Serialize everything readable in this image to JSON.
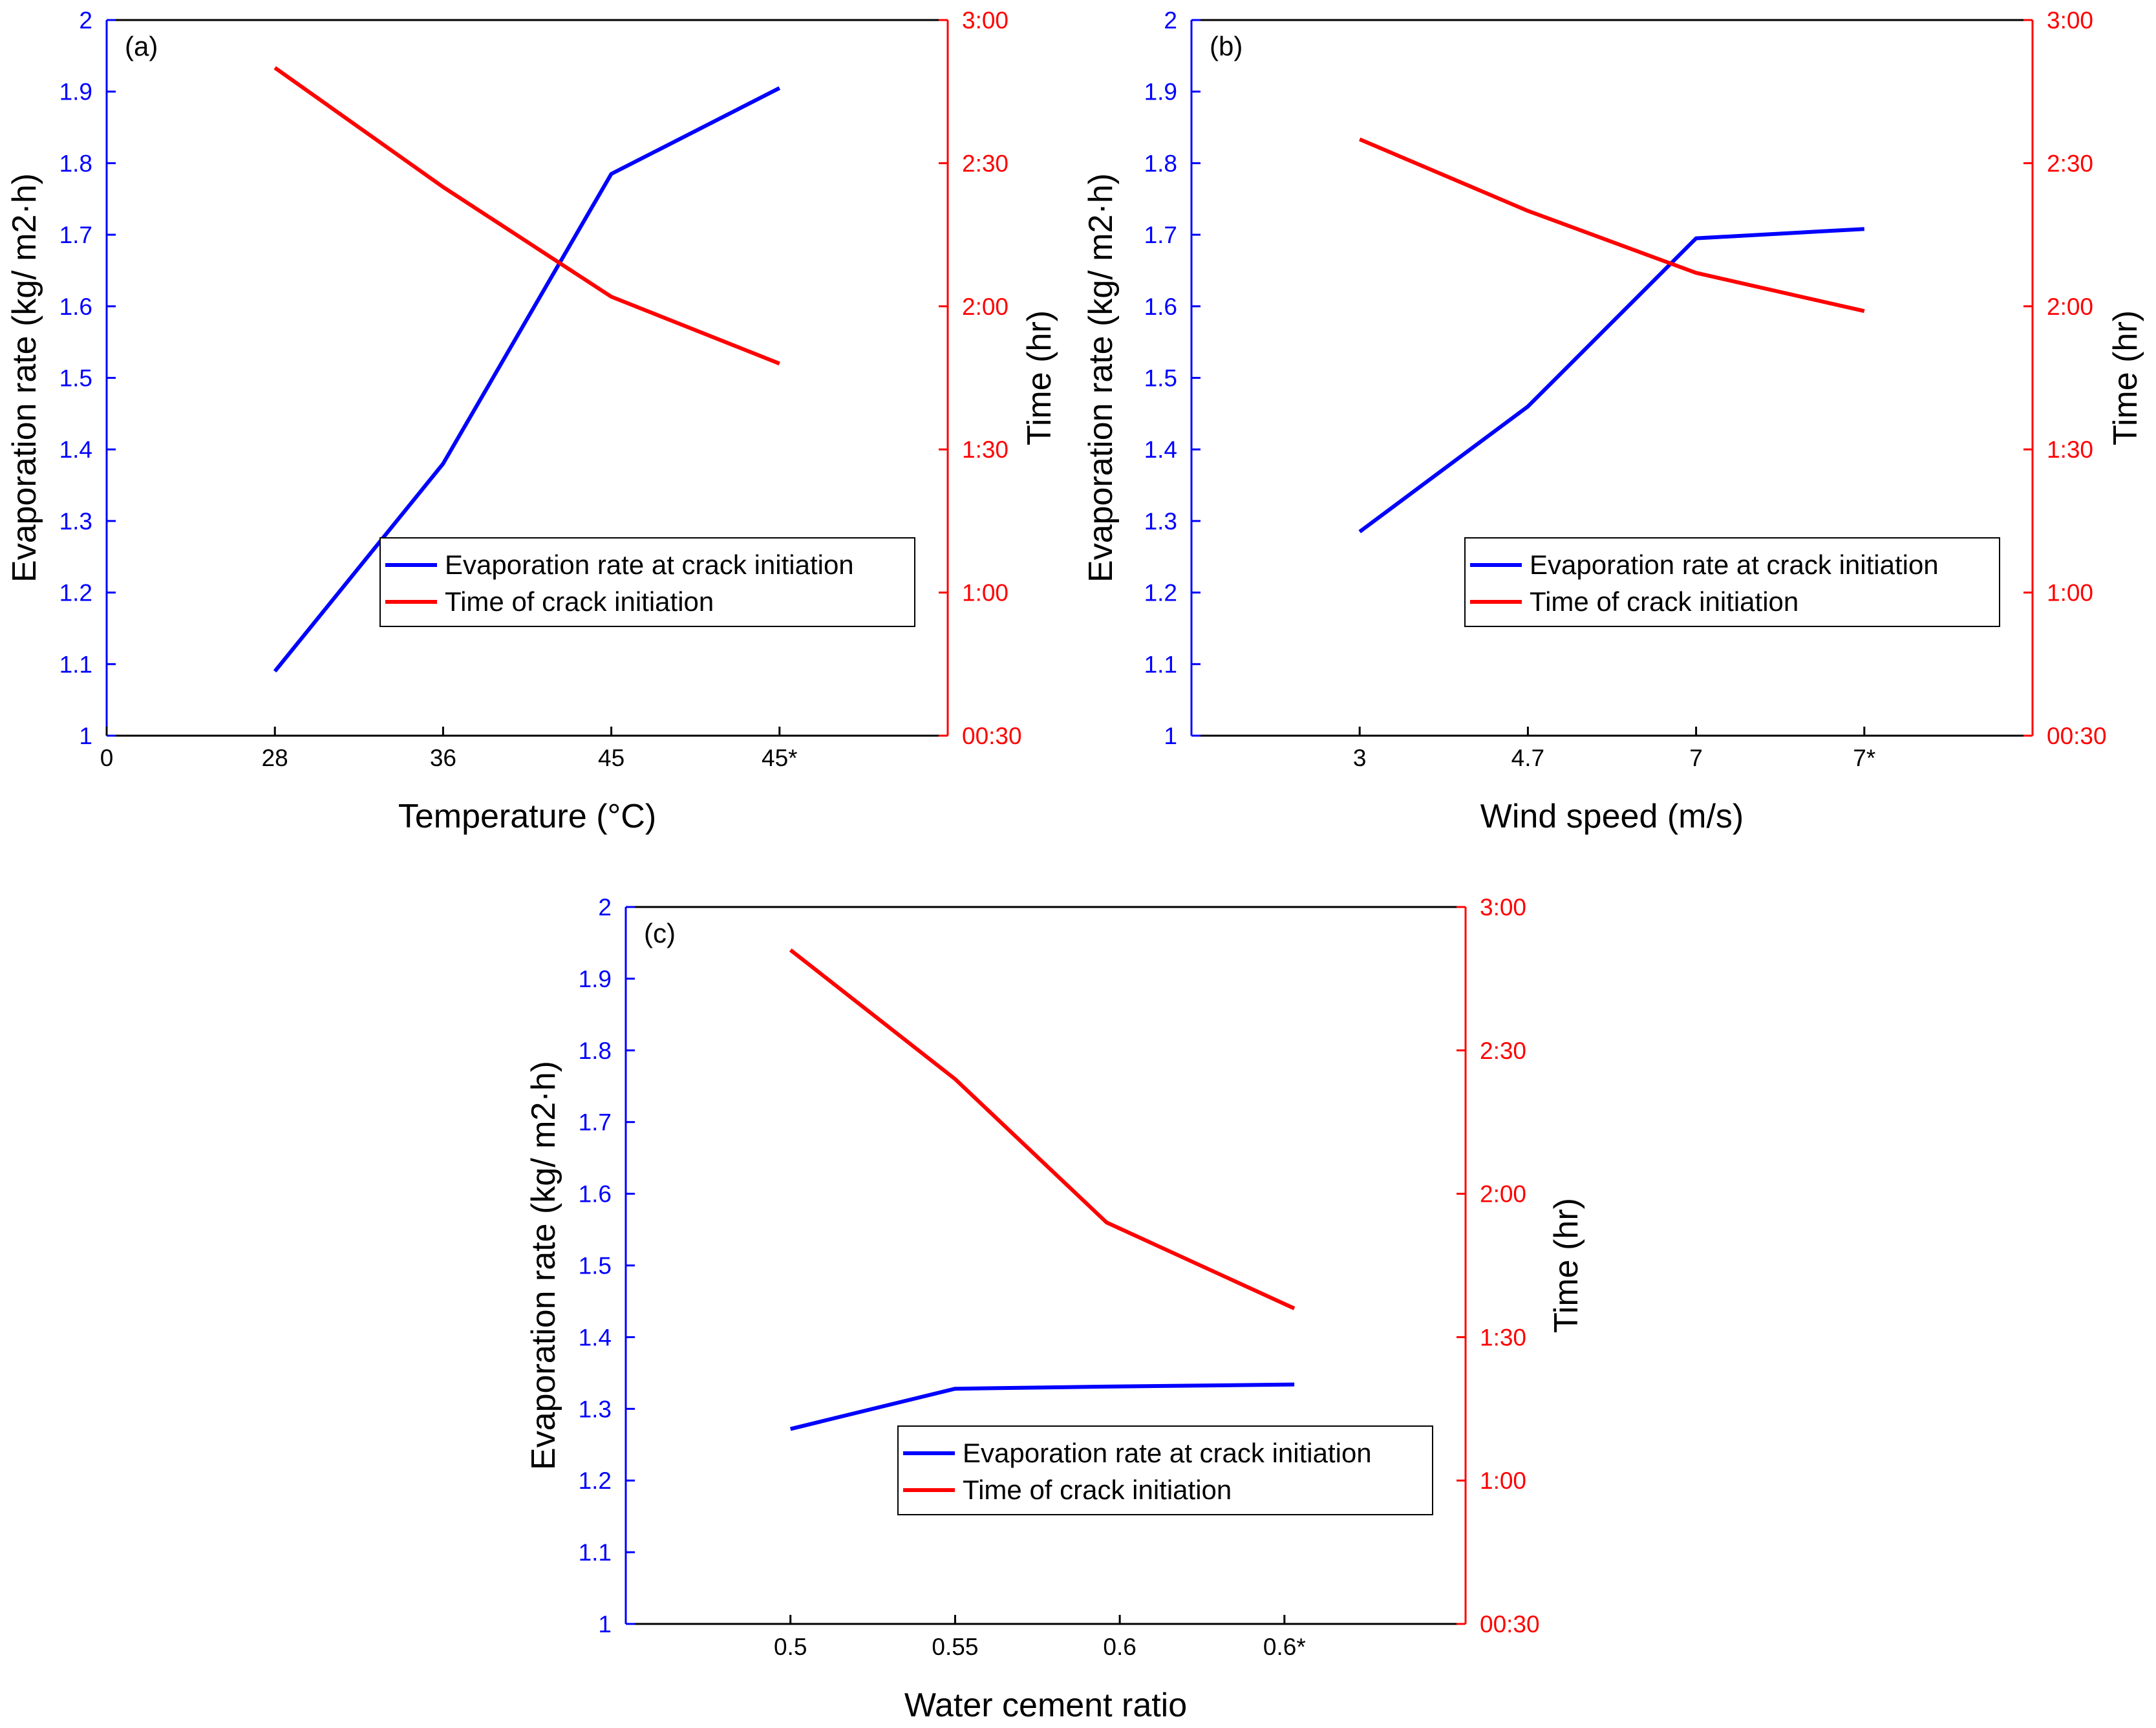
{
  "colors": {
    "left_axis": "#0000ff",
    "right_axis": "#ff0000",
    "axis": "#000000"
  },
  "chart_data": [
    {
      "panel": "(a)",
      "type": "line",
      "xlabel": "Temperature (°C)",
      "ylabel_left": "Evaporation rate (kg/ m2·h)",
      "ylabel_right": "Time (hr)",
      "x_ticks": [
        "0",
        "28",
        "36",
        "45",
        "45*"
      ],
      "y_left_ticks": [
        "1",
        "1.1",
        "1.2",
        "1.3",
        "1.4",
        "1.5",
        "1.6",
        "1.7",
        "1.8",
        "1.9",
        "2"
      ],
      "y_right_ticks": [
        "00:30",
        "1:00",
        "1:30",
        "2:00",
        "2:30",
        "3:00"
      ],
      "ylim_left": [
        1,
        2
      ],
      "ylim_right_minutes": [
        30,
        180
      ],
      "categories": [
        "28",
        "36",
        "45",
        "45*"
      ],
      "series": [
        {
          "name": "Evaporation rate at crack initiation",
          "axis": "left",
          "unit": "kg/m2·h",
          "values": [
            1.09,
            1.38,
            1.785,
            1.905
          ]
        },
        {
          "name": "Time of crack initiation",
          "axis": "right",
          "unit": "minutes",
          "values": [
            170,
            145,
            122,
            108
          ]
        }
      ],
      "legend": "lower-right"
    },
    {
      "panel": "(b)",
      "type": "line",
      "xlabel": "Wind speed (m/s)",
      "ylabel_left": "Evaporation rate (kg/ m2·h)",
      "ylabel_right": "Time (hr)",
      "x_ticks": [
        "3",
        "4.7",
        "7",
        "7*"
      ],
      "y_left_ticks": [
        "1",
        "1.1",
        "1.2",
        "1.3",
        "1.4",
        "1.5",
        "1.6",
        "1.7",
        "1.8",
        "1.9",
        "2"
      ],
      "y_right_ticks": [
        "00:30",
        "1:00",
        "1:30",
        "2:00",
        "2:30",
        "3:00"
      ],
      "ylim_left": [
        1,
        2
      ],
      "ylim_right_minutes": [
        30,
        180
      ],
      "categories": [
        "3",
        "4.7",
        "7",
        "7*"
      ],
      "series": [
        {
          "name": "Evaporation rate at crack initiation",
          "axis": "left",
          "unit": "kg/m2·h",
          "values": [
            1.285,
            1.46,
            1.695,
            1.708
          ]
        },
        {
          "name": "Time of crack initiation",
          "axis": "right",
          "unit": "minutes",
          "values": [
            155,
            140,
            127,
            119
          ]
        }
      ],
      "legend": "lower-right"
    },
    {
      "panel": "(c)",
      "type": "line",
      "xlabel": "Water cement ratio",
      "ylabel_left": "Evaporation rate (kg/ m2·h)",
      "ylabel_right": "Time (hr)",
      "x_ticks": [
        "0.5",
        "0.55",
        "0.6",
        "0.6*"
      ],
      "y_left_ticks": [
        "1",
        "1.1",
        "1.2",
        "1.3",
        "1.4",
        "1.5",
        "1.6",
        "1.7",
        "1.8",
        "1.9",
        "2"
      ],
      "y_right_ticks": [
        "00:30",
        "1:00",
        "1:30",
        "2:00",
        "2:30",
        "3:00"
      ],
      "ylim_left": [
        1,
        2
      ],
      "ylim_right_minutes": [
        30,
        180
      ],
      "categories": [
        "0.5",
        "0.55",
        "0.6",
        "0.6*"
      ],
      "series": [
        {
          "name": "Evaporation rate at crack initiation",
          "axis": "left",
          "unit": "kg/m2·h",
          "values": [
            1.272,
            1.328,
            1.331,
            1.334
          ]
        },
        {
          "name": "Time of crack initiation",
          "axis": "right",
          "unit": "minutes",
          "values": [
            171,
            144,
            114,
            96
          ]
        }
      ],
      "legend": "lower-right"
    }
  ]
}
